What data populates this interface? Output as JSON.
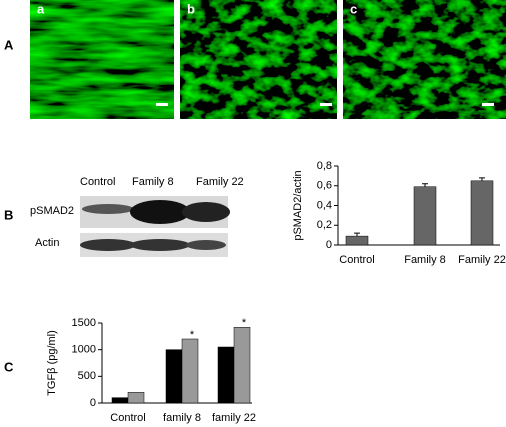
{
  "panel_labels": [
    "A",
    "B",
    "C"
  ],
  "images": [
    {
      "label": "a"
    },
    {
      "label": "b"
    },
    {
      "label": "c"
    }
  ],
  "blot": {
    "lanes": [
      "Control",
      "Family 8",
      "Family 22"
    ],
    "rows": [
      "pSMAD2",
      "Actin"
    ]
  },
  "chart_data": [
    {
      "type": "bar",
      "y_label": "pSMAD2/actin",
      "categories": [
        "Control",
        "Family 8",
        "Family 22"
      ],
      "values": [
        0.09,
        0.59,
        0.65
      ],
      "errors": [
        0.03,
        0.03,
        0.03
      ],
      "color": "#666666",
      "ylim": [
        0,
        0.8
      ],
      "yticks": [
        {
          "value": 0,
          "label": "0"
        },
        {
          "value": 0.2,
          "label": "0,2"
        },
        {
          "value": 0.4,
          "label": "0,4"
        },
        {
          "value": 0.6,
          "label": "0,6"
        },
        {
          "value": 0.8,
          "label": "0,8"
        }
      ]
    },
    {
      "type": "bar",
      "y_label": "TGFβ (pg/ml)",
      "categories": [
        "Control",
        "family 8",
        "family 22"
      ],
      "series": [
        {
          "color": "#000000",
          "values": [
            100,
            1000,
            1050
          ]
        },
        {
          "color": "#999999",
          "values": [
            200,
            1200,
            1420
          ],
          "significance": [
            null,
            "*",
            "*"
          ]
        }
      ],
      "ylim": [
        0,
        1500
      ],
      "yticks": [
        0,
        500,
        1000,
        1500
      ]
    }
  ]
}
